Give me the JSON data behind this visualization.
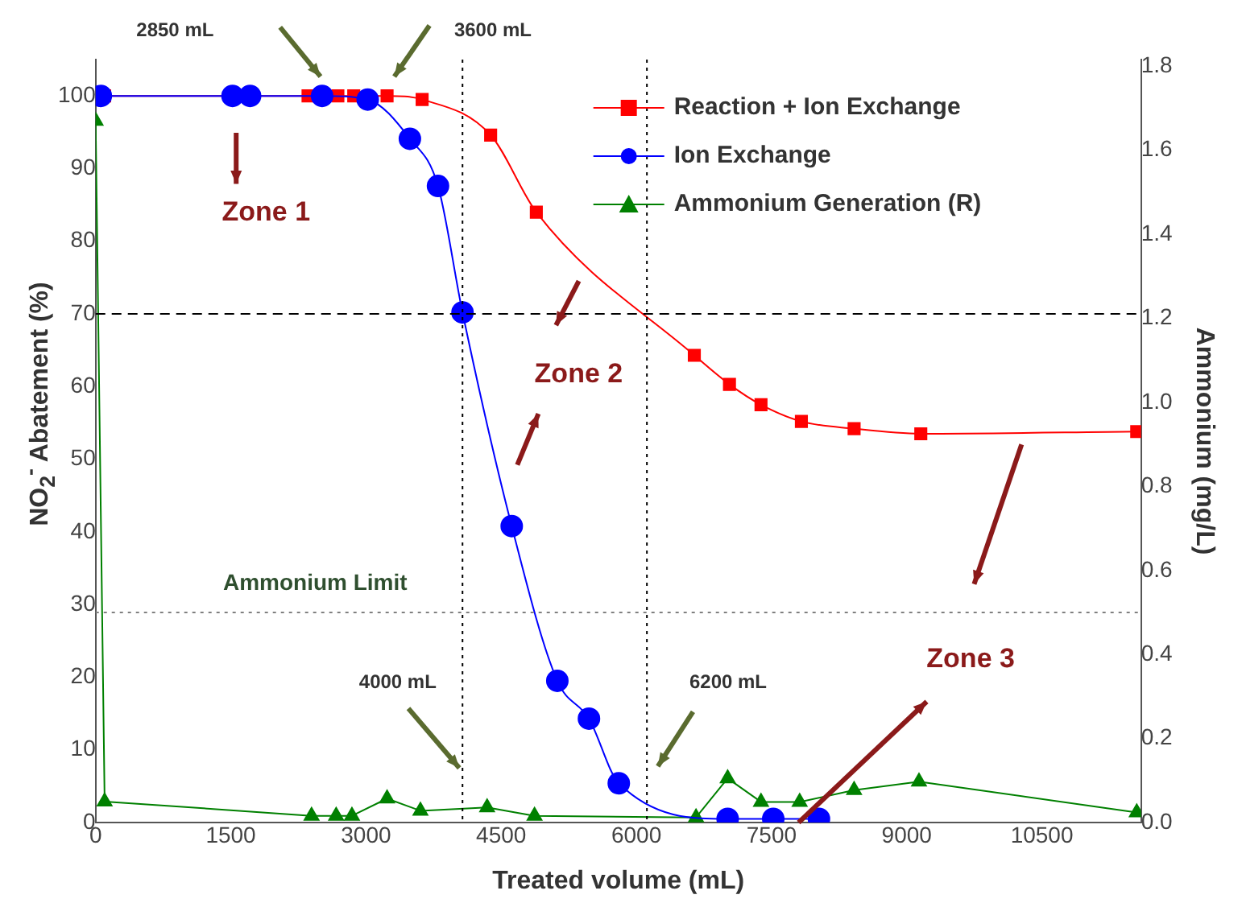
{
  "chart_data": {
    "type": "line",
    "xlabel": "Treated volume (mL)",
    "ylabel": "NO$_{2}$$^{-}$ Abatement (%)",
    "y2label": "Ammonium (mg/L)",
    "xlim": [
      0,
      11600
    ],
    "xticks": [
      0,
      1500,
      3000,
      4500,
      6000,
      7500,
      9000,
      10500
    ],
    "ylim": [
      0,
      105
    ],
    "yticks": [
      0,
      10,
      20,
      30,
      40,
      50,
      60,
      70,
      80,
      90,
      100
    ],
    "y2lim": [
      0,
      1.816
    ],
    "y2ticks": [
      {
        "value": 0,
        "label": "0.0"
      },
      {
        "value": 0.2,
        "label": "0.2"
      },
      {
        "value": 0.4,
        "label": "0.4"
      },
      {
        "value": 0.6,
        "label": "0.6"
      },
      {
        "value": 0.8,
        "label": "0.8"
      },
      {
        "value": 1,
        "label": "1.0"
      },
      {
        "value": 1.2,
        "label": "1.2"
      },
      {
        "value": 1.4,
        "label": "1.4"
      },
      {
        "value": 1.6,
        "label": "1.6"
      },
      {
        "value": 1.8,
        "label": "1.8"
      }
    ],
    "grid": false,
    "legend": "top right",
    "series": [
      {
        "name": "Reaction + Ion Exchange",
        "color": "#ff0000",
        "marker": "square",
        "x": [
          100,
          2357,
          2532,
          2688,
          2864,
          3234,
          3623,
          4383,
          4890,
          6643,
          7033,
          7383,
          7831,
          8416,
          9156,
          11552
        ],
        "values": [
          100,
          100,
          100,
          100,
          100,
          100,
          99.5,
          94.6,
          84,
          64.3,
          60.3,
          57.5,
          55.2,
          54.2,
          53.5,
          53.8
        ]
      },
      {
        "name": "Ion Exchange",
        "color": "#0000ff",
        "marker": "circle",
        "x": [
          58,
          1519,
          1714,
          2513,
          3019,
          3487,
          3799,
          4071,
          4617,
          5123,
          5474,
          5805,
          7013,
          7519,
          8026
        ],
        "values": [
          100,
          100,
          100,
          100,
          99.5,
          94.1,
          87.6,
          70.2,
          40.8,
          19.5,
          14.3,
          5.4,
          0.5,
          0.5,
          0.5
        ]
      },
      {
        "name": "Ammonium Generation (R)",
        "color": "#008000",
        "marker": "triangle",
        "axis": "y2",
        "x": [
          0,
          100,
          2396,
          2669,
          2844,
          3234,
          3604,
          4344,
          4870,
          6662,
          7013,
          7383,
          7812,
          8416,
          9136,
          11552
        ],
        "values": [
          1.67,
          0.05,
          0.016,
          0.016,
          0.016,
          0.057,
          0.028,
          0.036,
          0.016,
          0.012,
          0.105,
          0.049,
          0.049,
          0.077,
          0.097,
          0.024
        ]
      }
    ],
    "ref_lines": [
      {
        "axis": "y",
        "value": 70,
        "line_style": "dashed",
        "color": "#000000"
      },
      {
        "axis": "x",
        "value": 4071,
        "line_style": "dotted",
        "color": "#000000"
      },
      {
        "axis": "x",
        "value": 6117,
        "line_style": "dotted",
        "color": "#000000"
      },
      {
        "axis": "y2",
        "value": 0.5,
        "line_style": "dotted",
        "color": "#808080"
      }
    ],
    "annotations": [
      "2850 mL",
      "3600 mL",
      "Zone 1",
      "Zone 2",
      {
        "text": "Zone 3",
        "x": 7800,
        "y": 0
      },
      "Ammonium Limit",
      "4000 mL",
      "6200 mL"
    ]
  }
}
